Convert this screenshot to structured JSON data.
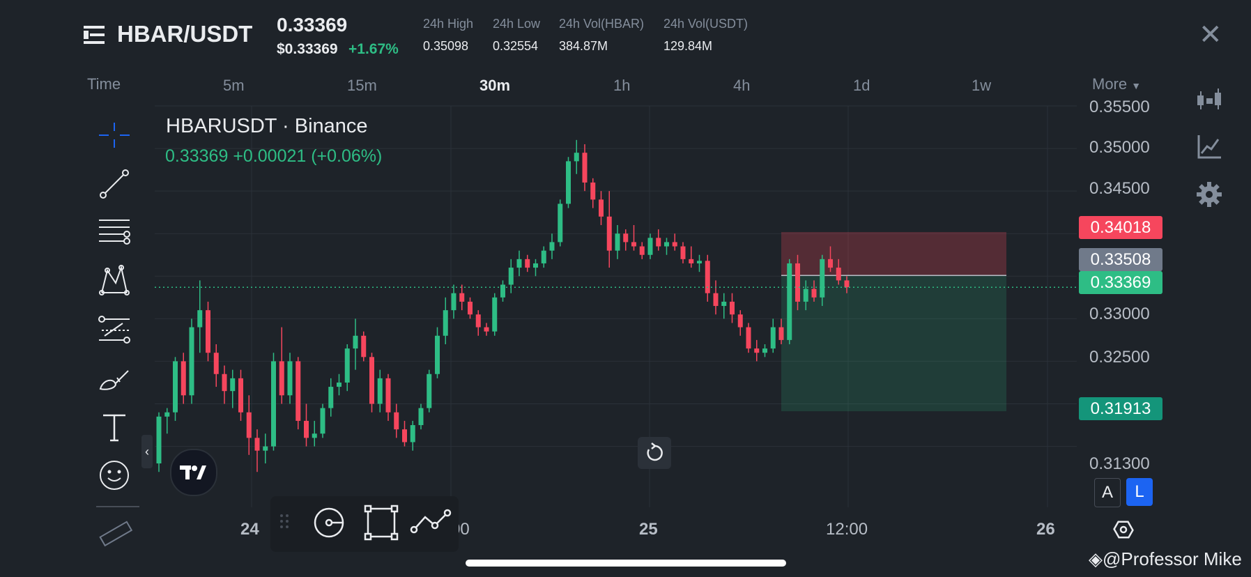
{
  "header": {
    "pair": "HBAR/USDT",
    "price": "0.33369",
    "price_usd": "$0.33369",
    "change_pct": "+1.67%",
    "stats": [
      {
        "label": "24h High",
        "value": "0.35098"
      },
      {
        "label": "24h Low",
        "value": "0.32554"
      },
      {
        "label": "24h Vol(HBAR)",
        "value": "384.87M"
      },
      {
        "label": "24h Vol(USDT)",
        "value": "129.84M"
      }
    ],
    "close_glyph": "✕"
  },
  "timeframes": {
    "time_label": "Time",
    "items": [
      "5m",
      "15m",
      "30m",
      "1h",
      "4h",
      "1d",
      "1w"
    ],
    "active": "30m",
    "more_label": "More"
  },
  "chart": {
    "symbol_title": "HBARUSDT · Binance",
    "last_line": "0.33369  +0.00021 (+0.06%)",
    "y_ticks": [
      "0.35500",
      "0.35000",
      "0.34500",
      "0.33000",
      "0.32500",
      "0.31300"
    ],
    "x_ticks": [
      "24",
      "12:00",
      "25",
      "12:00",
      "26"
    ],
    "x_ticks_partial": "00",
    "tags": {
      "stop": "0.34018",
      "entry": "0.33508",
      "last": "0.33369",
      "target": "0.31913"
    },
    "colors": {
      "up": "#2ebd85",
      "down": "#f6465d",
      "bg": "#1e2329",
      "grid": "#2b3139"
    }
  },
  "chart_data": {
    "type": "candlestick",
    "interval": "30m",
    "y_range": [
      0.3125,
      0.3555
    ],
    "candles": [
      [
        0.313,
        0.319,
        0.312,
        0.3185
      ],
      [
        0.3185,
        0.3195,
        0.3165,
        0.319
      ],
      [
        0.319,
        0.3255,
        0.318,
        0.325
      ],
      [
        0.325,
        0.326,
        0.32,
        0.321
      ],
      [
        0.321,
        0.33,
        0.32,
        0.329
      ],
      [
        0.329,
        0.3345,
        0.326,
        0.331
      ],
      [
        0.331,
        0.332,
        0.325,
        0.326
      ],
      [
        0.326,
        0.327,
        0.322,
        0.3235
      ],
      [
        0.3235,
        0.3245,
        0.32,
        0.3215
      ],
      [
        0.3215,
        0.324,
        0.3195,
        0.323
      ],
      [
        0.323,
        0.324,
        0.318,
        0.319
      ],
      [
        0.319,
        0.321,
        0.314,
        0.316
      ],
      [
        0.316,
        0.317,
        0.312,
        0.3145
      ],
      [
        0.3145,
        0.3165,
        0.313,
        0.315
      ],
      [
        0.315,
        0.326,
        0.3145,
        0.325
      ],
      [
        0.325,
        0.329,
        0.32,
        0.321
      ],
      [
        0.321,
        0.326,
        0.32,
        0.325
      ],
      [
        0.325,
        0.3255,
        0.317,
        0.318
      ],
      [
        0.318,
        0.32,
        0.315,
        0.316
      ],
      [
        0.316,
        0.318,
        0.315,
        0.3165
      ],
      [
        0.3165,
        0.32,
        0.316,
        0.3195
      ],
      [
        0.3195,
        0.323,
        0.3185,
        0.322
      ],
      [
        0.322,
        0.3235,
        0.321,
        0.3225
      ],
      [
        0.3225,
        0.327,
        0.3215,
        0.3265
      ],
      [
        0.3265,
        0.33,
        0.324,
        0.328
      ],
      [
        0.328,
        0.3285,
        0.325,
        0.3255
      ],
      [
        0.3255,
        0.326,
        0.319,
        0.32
      ],
      [
        0.32,
        0.324,
        0.319,
        0.323
      ],
      [
        0.323,
        0.3235,
        0.318,
        0.319
      ],
      [
        0.319,
        0.32,
        0.316,
        0.317
      ],
      [
        0.317,
        0.318,
        0.315,
        0.3155
      ],
      [
        0.3155,
        0.318,
        0.3145,
        0.3175
      ],
      [
        0.3175,
        0.32,
        0.317,
        0.3195
      ],
      [
        0.3195,
        0.324,
        0.319,
        0.3235
      ],
      [
        0.3235,
        0.329,
        0.323,
        0.328
      ],
      [
        0.328,
        0.3325,
        0.327,
        0.331
      ],
      [
        0.331,
        0.334,
        0.33,
        0.333
      ],
      [
        0.333,
        0.334,
        0.331,
        0.332
      ],
      [
        0.332,
        0.3325,
        0.33,
        0.3305
      ],
      [
        0.3305,
        0.331,
        0.328,
        0.329
      ],
      [
        0.329,
        0.3295,
        0.328,
        0.3285
      ],
      [
        0.3285,
        0.333,
        0.328,
        0.3325
      ],
      [
        0.3325,
        0.3345,
        0.332,
        0.334
      ],
      [
        0.334,
        0.337,
        0.333,
        0.336
      ],
      [
        0.336,
        0.338,
        0.335,
        0.337
      ],
      [
        0.337,
        0.3375,
        0.3355,
        0.336
      ],
      [
        0.336,
        0.337,
        0.335,
        0.3365
      ],
      [
        0.3365,
        0.3385,
        0.336,
        0.338
      ],
      [
        0.338,
        0.34,
        0.337,
        0.339
      ],
      [
        0.339,
        0.344,
        0.3385,
        0.3435
      ],
      [
        0.3435,
        0.349,
        0.343,
        0.3485
      ],
      [
        0.3485,
        0.351,
        0.347,
        0.3495
      ],
      [
        0.3495,
        0.3505,
        0.345,
        0.346
      ],
      [
        0.346,
        0.3465,
        0.343,
        0.344
      ],
      [
        0.344,
        0.345,
        0.341,
        0.342
      ],
      [
        0.342,
        0.345,
        0.336,
        0.338
      ],
      [
        0.338,
        0.341,
        0.337,
        0.34
      ],
      [
        0.34,
        0.3405,
        0.338,
        0.339
      ],
      [
        0.339,
        0.341,
        0.338,
        0.3385
      ],
      [
        0.3385,
        0.339,
        0.337,
        0.3375
      ],
      [
        0.3375,
        0.34,
        0.337,
        0.3395
      ],
      [
        0.3395,
        0.3405,
        0.338,
        0.3385
      ],
      [
        0.3385,
        0.3395,
        0.3375,
        0.339
      ],
      [
        0.339,
        0.34,
        0.338,
        0.3385
      ],
      [
        0.3385,
        0.339,
        0.3365,
        0.337
      ],
      [
        0.337,
        0.3385,
        0.336,
        0.3365
      ],
      [
        0.3365,
        0.3375,
        0.3355,
        0.3368
      ],
      [
        0.3368,
        0.3375,
        0.332,
        0.333
      ],
      [
        0.333,
        0.3345,
        0.3305,
        0.3315
      ],
      [
        0.3315,
        0.333,
        0.33,
        0.332
      ],
      [
        0.332,
        0.333,
        0.3295,
        0.3305
      ],
      [
        0.3305,
        0.331,
        0.328,
        0.329
      ],
      [
        0.329,
        0.3295,
        0.326,
        0.3265
      ],
      [
        0.3265,
        0.3275,
        0.325,
        0.326
      ],
      [
        0.326,
        0.327,
        0.3255,
        0.3265
      ],
      [
        0.3265,
        0.33,
        0.326,
        0.329
      ],
      [
        0.329,
        0.33,
        0.327,
        0.3275
      ],
      [
        0.3275,
        0.337,
        0.327,
        0.3365
      ],
      [
        0.3365,
        0.3375,
        0.331,
        0.332
      ],
      [
        0.332,
        0.3345,
        0.331,
        0.3335
      ],
      [
        0.3335,
        0.3345,
        0.332,
        0.3325
      ],
      [
        0.3325,
        0.3375,
        0.3315,
        0.337
      ],
      [
        0.337,
        0.3385,
        0.3355,
        0.336
      ],
      [
        0.336,
        0.337,
        0.334,
        0.3345
      ],
      [
        0.3345,
        0.335,
        0.333,
        0.3337
      ]
    ],
    "last_price": 0.33369,
    "position": {
      "stop": 0.34018,
      "entry": 0.33508,
      "target": 0.31913
    }
  },
  "tools": [
    "crosshair-icon",
    "trend-line-icon",
    "horizontal-lines-icon",
    "pattern-icon",
    "fib-icon",
    "brush-icon",
    "text-icon",
    "emoji-icon",
    "ruler-icon"
  ],
  "scale_buttons": {
    "a": "A",
    "l": "L"
  },
  "credit": "@Professor Mike"
}
